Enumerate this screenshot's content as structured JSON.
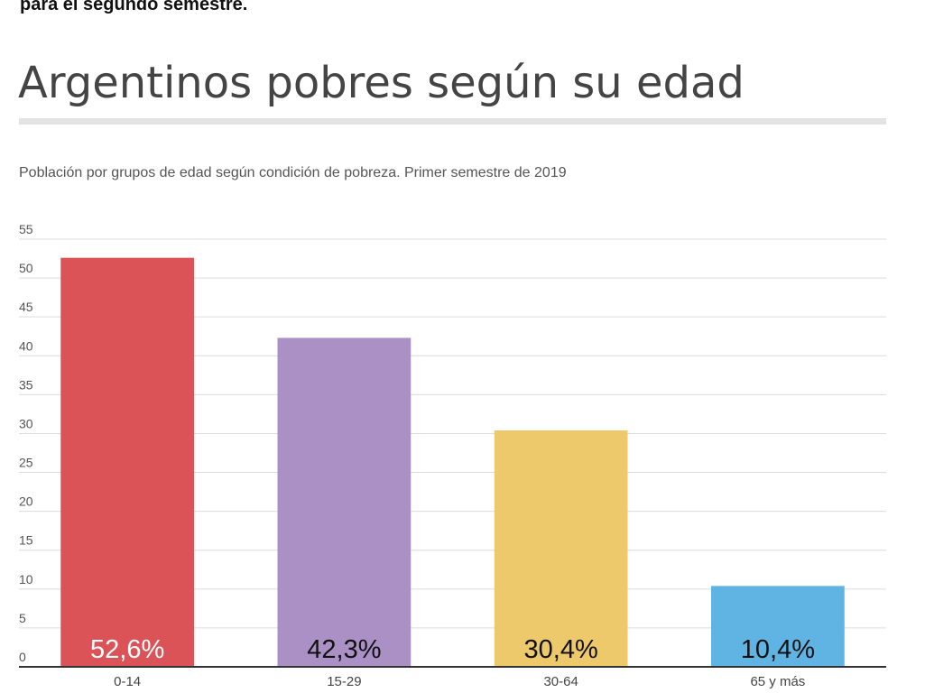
{
  "top_caption": "para el segundo semestre.",
  "chart_data": {
    "type": "bar",
    "title": "Argentinos pobres según su edad",
    "subtitle": "Población por grupos de edad según condición de pobreza. Primer semestre de 2019",
    "categories": [
      "0-14",
      "15-29",
      "30-64",
      "65 y más"
    ],
    "values": [
      52.6,
      42.3,
      30.4,
      10.4
    ],
    "data_labels": [
      "52,6%",
      "42,3%",
      "30,4%",
      "10,4%"
    ],
    "colors": [
      "#db5356",
      "#ab90c6",
      "#eec96b",
      "#5fb4e3"
    ],
    "label_colors": [
      "#ffffff",
      "#111111",
      "#111111",
      "#111111"
    ],
    "yticks": [
      0,
      5,
      10,
      15,
      20,
      25,
      30,
      35,
      40,
      45,
      50,
      55
    ],
    "ylim": [
      0,
      55
    ],
    "grid": true,
    "xlabel": "",
    "ylabel": ""
  }
}
